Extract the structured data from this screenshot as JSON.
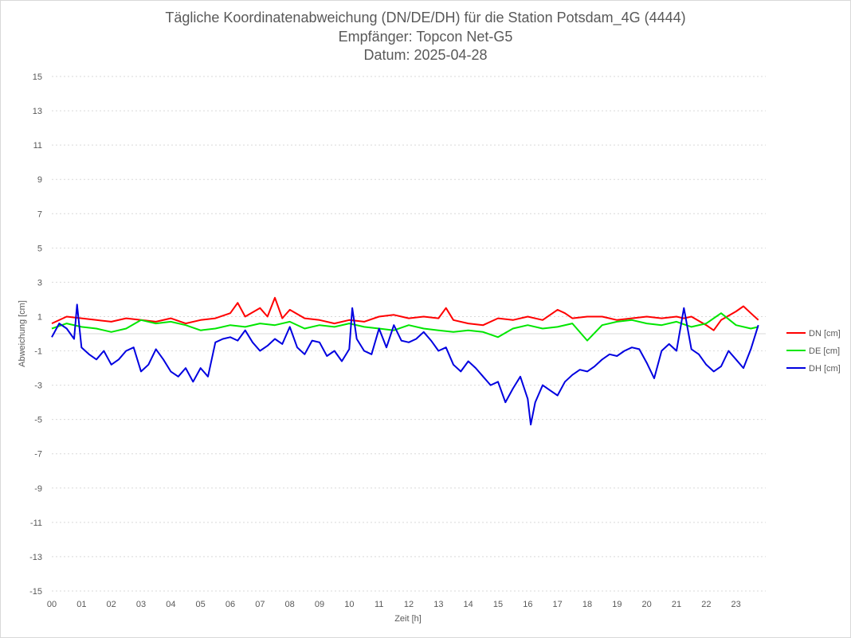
{
  "header": {
    "title": "Tägliche Koordinatenabweichung (DN/DE/DH) für die Station Potsdam_4G (4444)",
    "receiver": "Empfänger: Topcon Net-G5",
    "date": "Datum: 2025-04-28"
  },
  "chart_data": {
    "type": "line",
    "title": "Tägliche Koordinatenabweichung (DN/DE/DH) für die Station Potsdam_4G (4444)",
    "xlabel": "Zeit [h]",
    "ylabel": "Abweichung [cm]",
    "xlim": [
      0,
      24
    ],
    "ylim": [
      -15,
      15
    ],
    "x_ticks": [
      "00",
      "01",
      "02",
      "03",
      "04",
      "05",
      "06",
      "07",
      "08",
      "09",
      "10",
      "11",
      "12",
      "13",
      "14",
      "15",
      "16",
      "17",
      "18",
      "19",
      "20",
      "21",
      "22",
      "23"
    ],
    "y_ticks": [
      15,
      13,
      11,
      9,
      7,
      5,
      3,
      1,
      -1,
      -3,
      -5,
      -7,
      -9,
      -11,
      -13,
      -15
    ],
    "grid": "horizontal dotted",
    "legend_position": "right",
    "series": [
      {
        "name": "DN [cm]",
        "color": "#ff0000",
        "x": [
          0,
          0.5,
          1,
          1.5,
          2,
          2.5,
          3,
          3.5,
          4,
          4.5,
          5,
          5.5,
          6,
          6.25,
          6.5,
          7,
          7.25,
          7.5,
          7.75,
          8,
          8.5,
          9,
          9.5,
          10,
          10.5,
          11,
          11.5,
          12,
          12.5,
          13,
          13.25,
          13.5,
          14,
          14.5,
          15,
          15.5,
          16,
          16.5,
          17,
          17.25,
          17.5,
          18,
          18.5,
          19,
          19.5,
          20,
          20.5,
          21,
          21.25,
          21.5,
          22,
          22.25,
          22.5,
          23,
          23.25,
          23.5,
          23.75
        ],
        "values": [
          0.6,
          1.0,
          0.9,
          0.8,
          0.7,
          0.9,
          0.8,
          0.7,
          0.9,
          0.6,
          0.8,
          0.9,
          1.2,
          1.8,
          1.0,
          1.5,
          1.0,
          2.1,
          0.9,
          1.4,
          0.9,
          0.8,
          0.6,
          0.8,
          0.7,
          1.0,
          1.1,
          0.9,
          1.0,
          0.9,
          1.5,
          0.8,
          0.6,
          0.5,
          0.9,
          0.8,
          1.0,
          0.8,
          1.4,
          1.2,
          0.9,
          1.0,
          1.0,
          0.8,
          0.9,
          1.0,
          0.9,
          1.0,
          0.9,
          1.0,
          0.5,
          0.2,
          0.8,
          1.3,
          1.6,
          1.2,
          0.8
        ]
      },
      {
        "name": "DE [cm]",
        "color": "#00e600",
        "x": [
          0,
          0.5,
          1,
          1.5,
          2,
          2.5,
          3,
          3.5,
          4,
          4.5,
          5,
          5.5,
          6,
          6.5,
          7,
          7.5,
          8,
          8.5,
          9,
          9.5,
          10,
          10.5,
          11,
          11.5,
          12,
          12.5,
          13,
          13.5,
          14,
          14.5,
          15,
          15.5,
          16,
          16.5,
          17,
          17.5,
          18,
          18.5,
          19,
          19.5,
          20,
          20.5,
          21,
          21.5,
          22,
          22.5,
          23,
          23.5,
          23.75
        ],
        "values": [
          0.3,
          0.6,
          0.4,
          0.3,
          0.1,
          0.3,
          0.8,
          0.6,
          0.7,
          0.5,
          0.2,
          0.3,
          0.5,
          0.4,
          0.6,
          0.5,
          0.7,
          0.3,
          0.5,
          0.4,
          0.6,
          0.4,
          0.3,
          0.2,
          0.5,
          0.3,
          0.2,
          0.1,
          0.2,
          0.1,
          -0.2,
          0.3,
          0.5,
          0.3,
          0.4,
          0.6,
          -0.4,
          0.5,
          0.7,
          0.8,
          0.6,
          0.5,
          0.7,
          0.4,
          0.6,
          1.2,
          0.5,
          0.3,
          0.4
        ]
      },
      {
        "name": "DH [cm]",
        "color": "#0000e0",
        "x": [
          0,
          0.25,
          0.5,
          0.75,
          0.85,
          1,
          1.25,
          1.5,
          1.75,
          2,
          2.25,
          2.5,
          2.75,
          3,
          3.25,
          3.5,
          3.75,
          4,
          4.25,
          4.5,
          4.75,
          5,
          5.25,
          5.5,
          5.75,
          6,
          6.25,
          6.5,
          6.75,
          7,
          7.25,
          7.5,
          7.75,
          8,
          8.25,
          8.5,
          8.75,
          9,
          9.25,
          9.5,
          9.75,
          10,
          10.1,
          10.25,
          10.5,
          10.75,
          11,
          11.25,
          11.5,
          11.75,
          12,
          12.25,
          12.5,
          12.75,
          13,
          13.25,
          13.5,
          13.75,
          14,
          14.25,
          14.5,
          14.75,
          15,
          15.25,
          15.5,
          15.75,
          16,
          16.1,
          16.25,
          16.5,
          16.75,
          17,
          17.25,
          17.5,
          17.75,
          18,
          18.25,
          18.5,
          18.75,
          19,
          19.25,
          19.5,
          19.75,
          20,
          20.25,
          20.5,
          20.75,
          21,
          21.25,
          21.5,
          21.75,
          22,
          22.25,
          22.5,
          22.75,
          23,
          23.25,
          23.5,
          23.75
        ],
        "values": [
          -0.2,
          0.6,
          0.3,
          -0.3,
          1.7,
          -0.8,
          -1.2,
          -1.5,
          -1.0,
          -1.8,
          -1.5,
          -1.0,
          -0.8,
          -2.2,
          -1.8,
          -0.9,
          -1.5,
          -2.2,
          -2.5,
          -2.0,
          -2.8,
          -2.0,
          -2.5,
          -0.5,
          -0.3,
          -0.2,
          -0.4,
          0.2,
          -0.5,
          -1.0,
          -0.7,
          -0.3,
          -0.6,
          0.4,
          -0.8,
          -1.2,
          -0.4,
          -0.5,
          -1.3,
          -1.0,
          -1.6,
          -0.9,
          1.5,
          -0.3,
          -1.0,
          -1.2,
          0.3,
          -0.8,
          0.5,
          -0.4,
          -0.5,
          -0.3,
          0.1,
          -0.4,
          -1.0,
          -0.8,
          -1.8,
          -2.2,
          -1.6,
          -2.0,
          -2.5,
          -3.0,
          -2.8,
          -4.0,
          -3.2,
          -2.5,
          -3.8,
          -5.3,
          -4.0,
          -3.0,
          -3.3,
          -3.6,
          -2.8,
          -2.4,
          -2.1,
          -2.2,
          -1.9,
          -1.5,
          -1.2,
          -1.3,
          -1.0,
          -0.8,
          -0.9,
          -1.7,
          -2.6,
          -1.0,
          -0.6,
          -1.0,
          1.5,
          -0.9,
          -1.2,
          -1.8,
          -2.2,
          -1.9,
          -1.0,
          -1.5,
          -2.0,
          -0.9,
          0.5
        ]
      }
    ]
  }
}
